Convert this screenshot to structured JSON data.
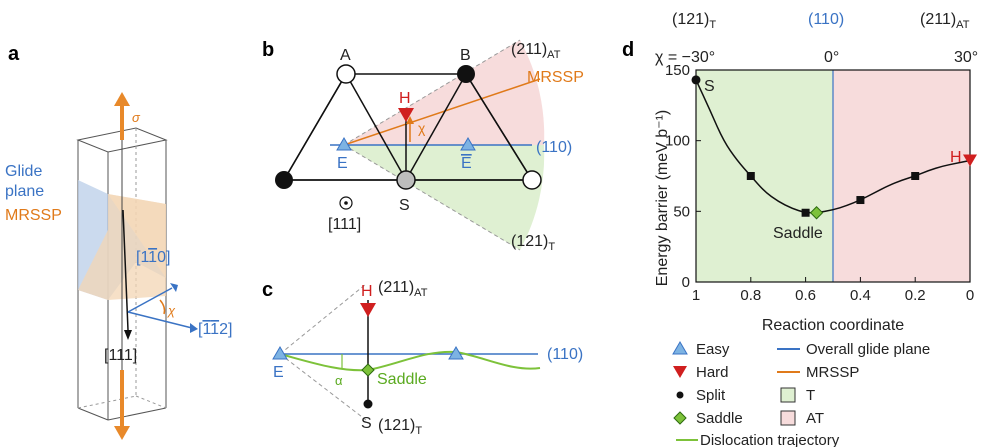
{
  "panels": {
    "a": {
      "letter": "a",
      "sigma": "σ",
      "glide_plane": [
        "Glide",
        "plane"
      ],
      "mrssp": "MRSSP",
      "dir_1m10": "[1",
      "dir_1m10_bar": "1",
      "dir_1m10_end": "0]",
      "dir_m1m12_a": "[",
      "dir_m1m12_bar1": "1",
      "dir_m1m12_bar2": "1",
      "dir_m1m12_end": "2]",
      "dir_111": "[111]",
      "chi": "χ"
    },
    "b": {
      "letter": "b",
      "atom_A": "A",
      "atom_B": "B",
      "H": "H",
      "E": "E",
      "S": "S",
      "chi": "χ",
      "dir_111": "[111]",
      "mrssp": "MRSSP",
      "plane_AT": "(211)",
      "plane_AT_sub": "AT",
      "plane_T": "(121)",
      "plane_T_sub": "T",
      "plane_glide": "(110)"
    },
    "c": {
      "letter": "c",
      "H": "H",
      "E": "E",
      "S": "S",
      "alpha": "α",
      "saddle": "Saddle",
      "plane_AT": "(211)",
      "plane_AT_sub": "AT",
      "plane_T": "(121)",
      "plane_T_sub": "T",
      "plane_glide": "(110)"
    },
    "d": {
      "letter": "d",
      "top_left": "(121)",
      "top_left_sub": "T",
      "top_mid": "(110)",
      "top_right": "(211)",
      "top_right_sub": "AT",
      "chi_left": "χ = −30°",
      "chi_mid": "0°",
      "chi_right": "30°",
      "S": "S",
      "H": "H",
      "saddle": "Saddle",
      "ylabel": "Energy barrier (meV b⁻¹)",
      "xlabel": "Reaction coordinate",
      "legend": {
        "easy": "Easy",
        "hard": "Hard",
        "split": "Split",
        "saddle": "Saddle",
        "overall": "Overall glide plane",
        "mrssp": "MRSSP",
        "T": "T",
        "AT": "AT",
        "trajectory": "Dislocation trajectory"
      }
    }
  },
  "chart_data": {
    "type": "line",
    "xlabel": "Reaction coordinate",
    "ylabel": "Energy barrier (meV b⁻¹)",
    "xlim": [
      1,
      0
    ],
    "ylim": [
      0,
      150
    ],
    "xticks": [
      "1",
      "0.8",
      "0.6",
      "0.4",
      "0.2",
      "0"
    ],
    "yticks": [
      "0",
      "50",
      "100",
      "150"
    ],
    "regions": [
      {
        "name": "T",
        "x_range": [
          1,
          0.5
        ],
        "color": "#dff0d2"
      },
      {
        "name": "AT",
        "x_range": [
          0.5,
          0
        ],
        "color": "#f7dcdc"
      }
    ],
    "overall_glide_plane_x": 0.5,
    "curve": {
      "x": [
        1.0,
        0.95,
        0.9,
        0.85,
        0.8,
        0.75,
        0.7,
        0.65,
        0.6,
        0.56,
        0.5,
        0.45,
        0.4,
        0.35,
        0.3,
        0.25,
        0.2,
        0.15,
        0.1,
        0.05,
        0.0
      ],
      "y": [
        143,
        122,
        100,
        86,
        75,
        64,
        57,
        52,
        49,
        49,
        51,
        54,
        58,
        63,
        68,
        72,
        75,
        79,
        82,
        84,
        86
      ]
    },
    "points": [
      {
        "kind": "split",
        "x": 1.0,
        "y": 143
      },
      {
        "kind": "square",
        "x": 0.8,
        "y": 75
      },
      {
        "kind": "square",
        "x": 0.6,
        "y": 49
      },
      {
        "kind": "saddle",
        "x": 0.56,
        "y": 49
      },
      {
        "kind": "square",
        "x": 0.4,
        "y": 58
      },
      {
        "kind": "square",
        "x": 0.2,
        "y": 75
      },
      {
        "kind": "hard",
        "x": 0.0,
        "y": 86
      }
    ]
  }
}
